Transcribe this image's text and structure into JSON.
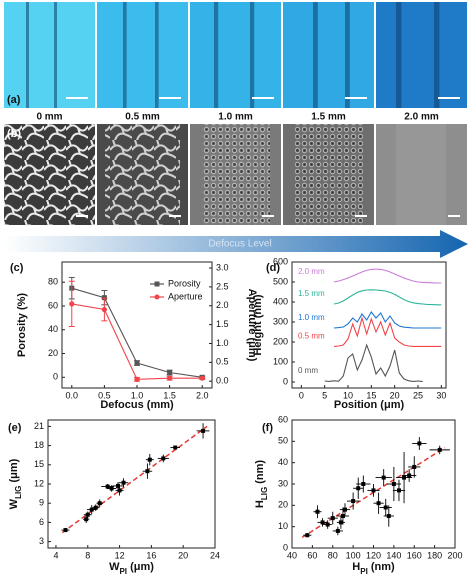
{
  "figure": {
    "panel_labels": [
      "(a)",
      "(b)"
    ],
    "image_labels": [
      "0 mm",
      "0.5 mm",
      "1.0 mm",
      "1.5 mm",
      "2.0 mm"
    ],
    "arrow_label": "Defocus Level"
  },
  "chart_data": [
    {
      "type": "line",
      "panel_label": "(c)",
      "xlabel": "Defocus (mm)",
      "ylabel": "Porosity (%)",
      "y2label": "Aperture (μm)",
      "x": [
        0,
        0.5,
        1,
        1.5,
        2
      ],
      "xlim": [
        -0.15,
        2.15
      ],
      "xticks": [
        {
          "value": 0,
          "label": "0.0"
        },
        0.5,
        {
          "value": 1,
          "label": "1.0"
        },
        1.5,
        {
          "value": 2,
          "label": "2.0"
        }
      ],
      "ylim": [
        -9,
        97
      ],
      "yticks": [
        0,
        20,
        40,
        60,
        80
      ],
      "y2lim": [
        -0.18,
        3.16
      ],
      "y2ticks": [
        {
          "value": 0,
          "label": "0.0"
        },
        0.5,
        {
          "value": 1,
          "label": "1.0"
        },
        1.5,
        {
          "value": 2,
          "label": "2.0"
        },
        2.5,
        {
          "value": 3,
          "label": "3.0"
        }
      ],
      "legend": "upper right",
      "series": [
        {
          "name": "Porosity",
          "color": "#555555",
          "marker": "square",
          "values": [
            75,
            67,
            12,
            4,
            0
          ],
          "errors": [
            9,
            6,
            2,
            2,
            1
          ]
        },
        {
          "name": "Aperture",
          "color": "#f0444a",
          "marker": "circle",
          "axis": "y2",
          "values": [
            2.05,
            1.9,
            0.05,
            0.08,
            0.08
          ],
          "errors": [
            0.6,
            0.3,
            0.05,
            0.05,
            0.03
          ]
        }
      ]
    },
    {
      "type": "line",
      "panel_label": "(d)",
      "xlabel": "Position (μm)",
      "ylabel": "Height (nm)",
      "xlim": [
        -2,
        31
      ],
      "xticks": [
        0,
        5,
        10,
        15,
        20,
        25,
        30
      ],
      "ylim": [
        -30,
        600
      ],
      "yticks": [
        0,
        100,
        200,
        300,
        400,
        500,
        600
      ],
      "series": [
        {
          "name": "2.0 mm",
          "color": "#c77dd6",
          "x": [
            7,
            8,
            9,
            10,
            11,
            12,
            13,
            14,
            15,
            16,
            17,
            18,
            19,
            20,
            21,
            22,
            23,
            24,
            25,
            26,
            27,
            28,
            29,
            30
          ],
          "values": [
            500,
            505,
            512,
            520,
            530,
            540,
            550,
            558,
            563,
            565,
            563,
            558,
            550,
            540,
            530,
            520,
            512,
            505,
            500,
            498,
            497,
            496,
            495,
            495
          ]
        },
        {
          "name": "1.5 mm",
          "color": "#2ab59a",
          "x": [
            7,
            8,
            9,
            10,
            11,
            12,
            13,
            14,
            15,
            16,
            17,
            18,
            19,
            20,
            21,
            22,
            23,
            24,
            25,
            26,
            27,
            28,
            29,
            30
          ],
          "values": [
            390,
            395,
            405,
            420,
            435,
            448,
            456,
            460,
            461,
            460,
            458,
            455,
            448,
            438,
            425,
            412,
            402,
            396,
            392,
            390,
            388,
            387,
            386,
            386
          ]
        },
        {
          "name": "1.0 mm",
          "color": "#1f77d4",
          "x": [
            7,
            8,
            9,
            10,
            11,
            12,
            13,
            14,
            15,
            16,
            17,
            18,
            19,
            20,
            21,
            22,
            23,
            24,
            25,
            26,
            27,
            28,
            29,
            30
          ],
          "values": [
            270,
            272,
            275,
            290,
            320,
            300,
            340,
            310,
            350,
            320,
            345,
            300,
            330,
            295,
            280,
            274,
            272,
            270,
            270,
            270,
            270,
            270,
            270,
            270
          ]
        },
        {
          "name": "0.5 mm",
          "color": "#f0444a",
          "x": [
            7,
            8,
            9,
            10,
            11,
            12,
            13,
            14,
            15,
            16,
            17,
            18,
            19,
            20,
            21,
            22,
            23,
            24,
            25,
            26,
            27,
            28,
            29,
            30
          ],
          "values": [
            178,
            180,
            185,
            215,
            290,
            230,
            320,
            240,
            315,
            250,
            300,
            235,
            295,
            220,
            200,
            185,
            180,
            178,
            178,
            178,
            178,
            178,
            178,
            178
          ]
        },
        {
          "name": "0 mm",
          "color": "#555555",
          "x": [
            5,
            6,
            7,
            8,
            9,
            10,
            11,
            12,
            13,
            14,
            15,
            16,
            17,
            18,
            19,
            20,
            21,
            22,
            23,
            24,
            25,
            26
          ],
          "values": [
            5,
            3,
            6,
            4,
            30,
            120,
            140,
            60,
            110,
            185,
            125,
            40,
            70,
            30,
            80,
            160,
            45,
            15,
            6,
            3,
            5,
            2
          ]
        }
      ]
    },
    {
      "type": "scatter",
      "panel_label": "(e)",
      "xlabel": [
        "W",
        "PI",
        " (μm)"
      ],
      "ylabel": [
        "W",
        "LIG",
        " (μm)"
      ],
      "xlim": [
        3,
        24
      ],
      "xticks": [
        4,
        8,
        12,
        16,
        20,
        24
      ],
      "ylim": [
        2,
        22
      ],
      "yticks": [
        3,
        6,
        9,
        12,
        15,
        18,
        21
      ],
      "color": "#000000",
      "x": [
        5.2,
        7.8,
        8,
        8.5,
        9,
        9.5,
        10.5,
        11,
        11.8,
        12,
        12.5,
        15.5,
        15.8,
        17.5,
        19,
        22.5
      ],
      "values": [
        4.8,
        6.5,
        7.2,
        8,
        8.3,
        9,
        11.6,
        11.3,
        11.7,
        11,
        12.2,
        14,
        15.8,
        16,
        17.7,
        20.3
      ],
      "xerr": [
        0.5,
        0.4,
        0.5,
        0.6,
        0.5,
        0.4,
        0.8,
        0.6,
        0.7,
        0.5,
        0.6,
        0.6,
        0.5,
        0.7,
        0.6,
        0.8
      ],
      "yerr": [
        0.3,
        0.6,
        0.5,
        0.7,
        0.5,
        0.6,
        0.4,
        0.5,
        0.6,
        0.8,
        0.7,
        1.2,
        0.9,
        0.6,
        0.3,
        1.2
      ],
      "fit": {
        "color": "#e53935",
        "x": [
          4.8,
          23
        ],
        "values": [
          4.4,
          21
        ]
      }
    },
    {
      "type": "scatter",
      "panel_label": "(f)",
      "xlabel": [
        "H",
        "PI",
        " (nm)"
      ],
      "ylabel": [
        "H",
        "LIG",
        " (nm)"
      ],
      "xlim": [
        40,
        200
      ],
      "xticks": [
        40,
        60,
        80,
        100,
        120,
        140,
        160,
        180,
        200
      ],
      "ylim": [
        0,
        60
      ],
      "yticks": [
        0,
        10,
        20,
        30,
        40,
        50,
        60
      ],
      "color": "#000000",
      "x": [
        55,
        65,
        70,
        75,
        80,
        85,
        88,
        90,
        92,
        100,
        105,
        110,
        120,
        125,
        130,
        132,
        135,
        140,
        145,
        150,
        155,
        160,
        165,
        185
      ],
      "values": [
        6,
        17,
        12,
        11,
        14,
        8,
        12,
        15,
        18,
        22,
        28,
        30,
        27,
        21,
        33,
        19,
        15,
        30,
        27,
        33,
        34,
        38,
        49,
        46
      ],
      "xerr": [
        4,
        4,
        5,
        4,
        5,
        5,
        4,
        6,
        5,
        6,
        5,
        7,
        6,
        5,
        8,
        6,
        5,
        7,
        6,
        8,
        7,
        6,
        7,
        10
      ],
      "yerr": [
        1,
        3,
        2,
        2,
        3,
        2,
        3,
        4,
        3,
        4,
        5,
        4,
        3,
        5,
        4,
        4,
        5,
        8,
        5,
        12,
        3,
        5,
        3,
        2
      ],
      "fit": {
        "color": "#e53935",
        "x": [
          50,
          190
        ],
        "values": [
          5,
          47
        ]
      }
    }
  ]
}
